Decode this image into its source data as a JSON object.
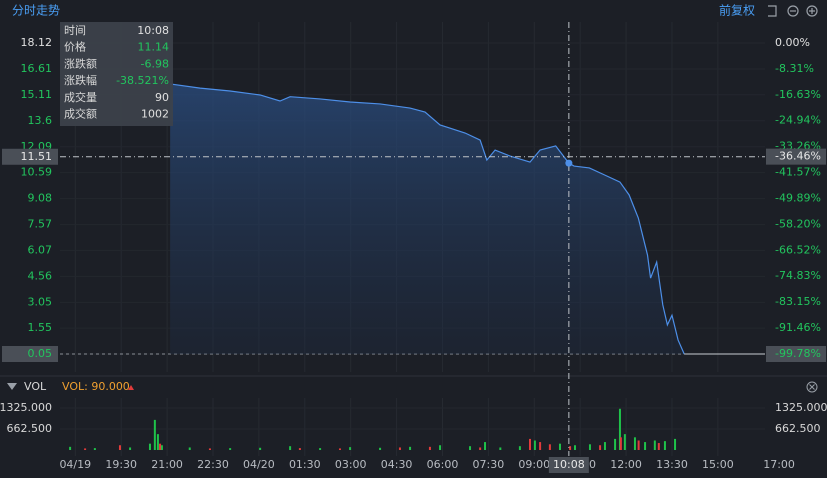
{
  "header": {
    "title": "分时走势",
    "adjust": "前复权"
  },
  "chart_data": {
    "type": "line",
    "x": [
      21.1,
      22.08,
      23.06,
      24.04,
      24.69,
      25.02,
      26.0,
      26.98,
      27.96,
      28.94,
      29.43,
      29.92,
      30.74,
      31.23,
      31.45,
      31.72,
      32.21,
      32.86,
      33.19,
      33.7,
      34.13,
      34.3,
      34.8,
      35.3,
      35.8,
      36.1,
      36.4,
      36.7,
      36.8,
      37.0,
      37.2,
      37.35,
      37.5,
      37.7,
      37.9
    ],
    "series": [
      {
        "color": "#4d8fe8",
        "values": [
          15.74,
          15.5,
          15.33,
          15.1,
          14.75,
          15.0,
          14.87,
          14.69,
          14.58,
          14.34,
          14.11,
          13.36,
          12.89,
          12.48,
          11.32,
          11.9,
          11.55,
          11.2,
          11.9,
          12.14,
          11.14,
          10.97,
          10.86,
          10.45,
          10.04,
          9.29,
          7.95,
          5.8,
          4.46,
          5.39,
          2.9,
          1.74,
          2.3,
          0.86,
          0.05
        ]
      }
    ],
    "xlim": [
      17.5,
      40.54
    ],
    "xticks": [
      {
        "value": 18,
        "label": "04/19"
      },
      {
        "value": 19.5,
        "label": "19:30"
      },
      {
        "value": 21,
        "label": "21:00"
      },
      {
        "value": 22.5,
        "label": "22:30"
      },
      {
        "value": 24,
        "label": "04/20"
      },
      {
        "value": 25.5,
        "label": "01:30"
      },
      {
        "value": 27,
        "label": "03:00"
      },
      {
        "value": 28.5,
        "label": "04:30"
      },
      {
        "value": 30,
        "label": "06:00"
      },
      {
        "value": 31.5,
        "label": "07:30"
      },
      {
        "value": 33,
        "label": "09:00"
      },
      {
        "value": 34.5,
        "label": "10:30"
      },
      {
        "value": 36,
        "label": "12:00"
      },
      {
        "value": 37.5,
        "label": "13:30"
      },
      {
        "value": 39,
        "label": "15:00"
      },
      {
        "value": 41,
        "label": "17:00"
      }
    ],
    "ylim": [
      0.05,
      18.12
    ],
    "yticks": [
      18.12,
      16.61,
      15.11,
      13.6,
      12.09,
      10.59,
      9.08,
      7.57,
      6.07,
      4.56,
      3.05,
      1.55,
      0.05
    ],
    "y2lim": [
      -99.78,
      0
    ],
    "y2ticks": [
      {
        "value": 0,
        "label": "0.00%"
      },
      {
        "value": -8.31,
        "label": "-8.31%"
      },
      {
        "value": -16.63,
        "label": "-16.63%"
      },
      {
        "value": -24.94,
        "label": "-24.94%"
      },
      {
        "value": -33.26,
        "label": "-33.26%"
      },
      {
        "value": -41.57,
        "label": "-41.57%"
      },
      {
        "value": -49.89,
        "label": "-49.89%"
      },
      {
        "value": -58.2,
        "label": "-58.20%"
      },
      {
        "value": -66.52,
        "label": "-66.52%"
      },
      {
        "value": -74.83,
        "label": "-74.83%"
      },
      {
        "value": -83.15,
        "label": "-83.15%"
      },
      {
        "value": -91.46,
        "label": "-91.46%"
      },
      {
        "value": -99.78,
        "label": "-99.78%"
      }
    ],
    "crosshair": {
      "x": {
        "value": 34.13,
        "label": "10:08"
      },
      "y": 11.51,
      "y2": {
        "value": -36.46,
        "label": "-36.46%"
      }
    },
    "tooltip": [
      [
        "时间",
        "10:08"
      ],
      [
        "价格",
        "11.14"
      ],
      [
        "涨跌额",
        "-6.98"
      ],
      [
        "涨跌幅",
        "-38.521%"
      ],
      [
        "成交量",
        "90"
      ],
      [
        "成交额",
        "1002"
      ]
    ],
    "volume": {
      "title": "VOL",
      "label": "VOL: 90.000",
      "ylim": [
        0,
        1325
      ],
      "yticks": [
        {
          "value": 1325,
          "label": "1325.000"
        },
        {
          "value": 662.5,
          "label": "662.500"
        }
      ],
      "series": [
        {
          "color": "#1fc24a",
          "x": [
            17.83,
            18.64,
            19.79,
            20.44,
            20.6,
            20.7,
            20.83,
            21.74,
            23.06,
            24.04,
            25.02,
            26.0,
            26.98,
            27.96,
            28.94,
            29.92,
            30.9,
            31.39,
            31.89,
            32.53,
            33.02,
            33.84,
            34.33,
            34.82,
            35.31,
            35.64,
            35.8,
            35.96,
            36.29,
            36.62,
            36.94,
            37.27,
            37.6
          ],
          "values": [
            100,
            60,
            80,
            200,
            950,
            500,
            150,
            80,
            60,
            70,
            120,
            60,
            90,
            70,
            100,
            150,
            120,
            250,
            80,
            120,
            300,
            200,
            150,
            180,
            250,
            350,
            1300,
            500,
            400,
            250,
            300,
            280,
            350
          ]
        },
        {
          "color": "#e23b3b",
          "x": [
            18.32,
            19.46,
            20.77,
            22.4,
            25.34,
            26.65,
            28.61,
            29.59,
            31.23,
            32.86,
            33.19,
            33.51,
            34.17,
            35.15,
            35.83,
            36.41,
            37.07
          ],
          "values": [
            50,
            150,
            200,
            50,
            60,
            50,
            80,
            100,
            80,
            350,
            250,
            180,
            120,
            150,
            400,
            300,
            220
          ]
        }
      ]
    }
  }
}
